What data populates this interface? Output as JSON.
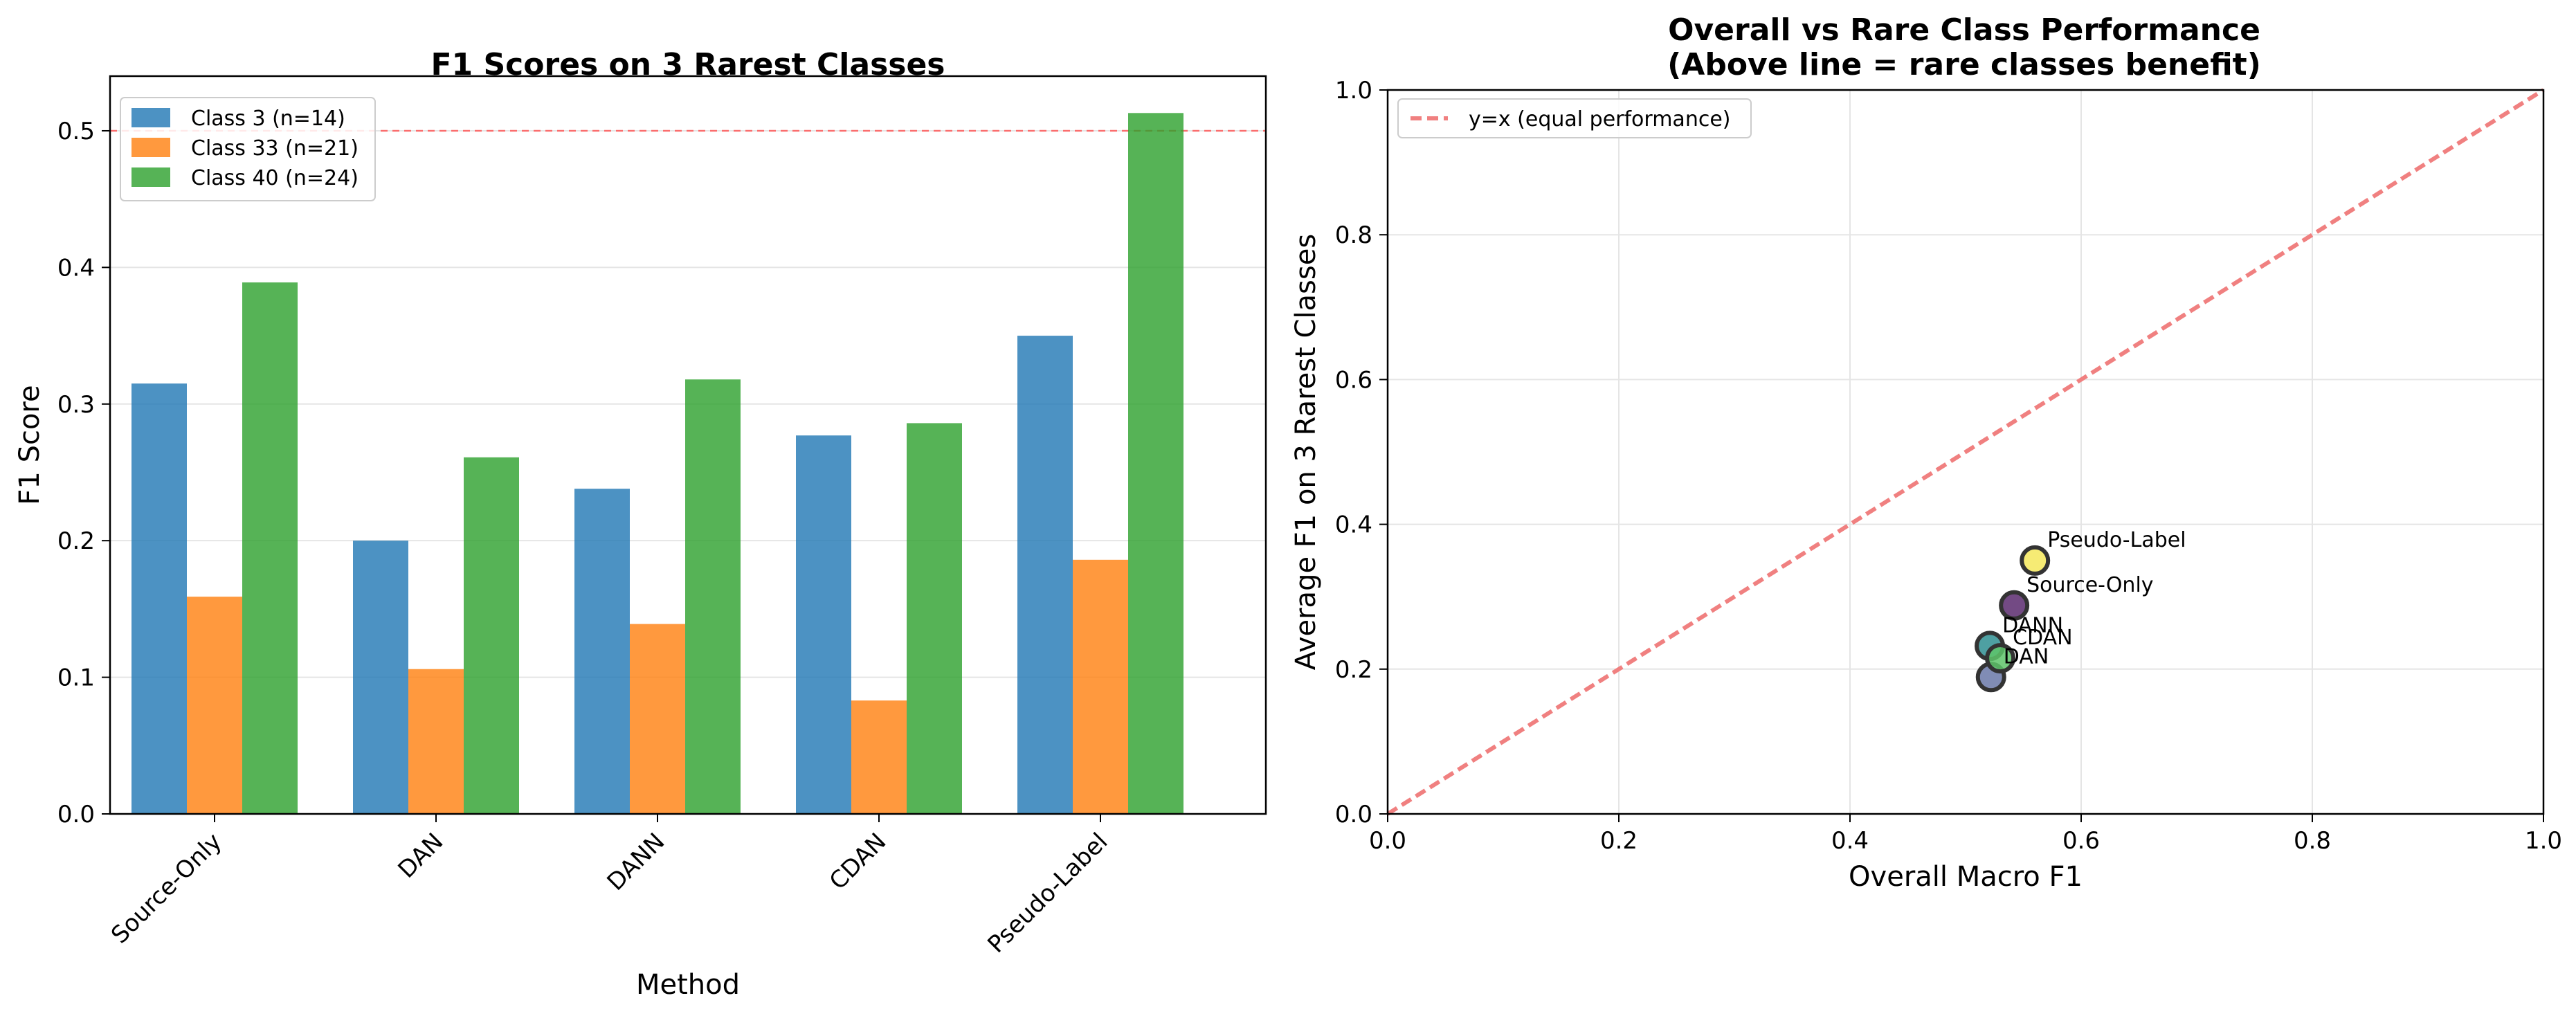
{
  "chart_data": [
    {
      "type": "bar",
      "title": "F1 Scores on 3 Rarest Classes",
      "xlabel": "Method",
      "ylabel": "F1 Score",
      "ylim": [
        0,
        0.54
      ],
      "yticks": [
        "0.0",
        "0.1",
        "0.2",
        "0.3",
        "0.4",
        "0.5"
      ],
      "ytick_values": [
        0,
        0.1,
        0.2,
        0.3,
        0.4,
        0.5
      ],
      "grid": "y",
      "legend_position": "top-left",
      "categories": [
        "Source-Only",
        "DAN",
        "DANN",
        "CDAN",
        "Pseudo-Label"
      ],
      "series": [
        {
          "name": "Class 3 (n=14)",
          "color": "#1f77b4",
          "values": [
            0.315,
            0.2,
            0.238,
            0.277,
            0.35
          ]
        },
        {
          "name": "Class 33 (n=21)",
          "color": "#ff7f0e",
          "values": [
            0.159,
            0.106,
            0.139,
            0.083,
            0.186
          ]
        },
        {
          "name": "Class 40 (n=24)",
          "color": "#2ca02c",
          "values": [
            0.389,
            0.261,
            0.318,
            0.286,
            0.513
          ]
        }
      ],
      "reference_line": {
        "y": 0.5,
        "color": "#ff5050",
        "style": "dashed"
      }
    },
    {
      "type": "scatter",
      "title": "Overall vs Rare Class Performance",
      "subtitle": "(Above line = rare classes benefit)",
      "xlabel": "Overall Macro F1",
      "ylabel": "Average F1 on 3 Rarest Classes",
      "xlim": [
        0,
        1
      ],
      "ylim": [
        0,
        1
      ],
      "xticks": [
        "0.0",
        "0.2",
        "0.4",
        "0.6",
        "0.8",
        "1.0"
      ],
      "yticks": [
        "0.0",
        "0.2",
        "0.4",
        "0.6",
        "0.8",
        "1.0"
      ],
      "tick_values": [
        0,
        0.2,
        0.4,
        0.6,
        0.8,
        1.0
      ],
      "grid": "both",
      "legend_position": "top-left",
      "legend": [
        "y=x (equal performance)"
      ],
      "reference_line_color": "#f08080",
      "points": [
        {
          "label": "Source-Only",
          "x": 0.542,
          "y": 0.288,
          "color": "#5b2a6e"
        },
        {
          "label": "DAN",
          "x": 0.522,
          "y": 0.189,
          "color": "#6a78a8"
        },
        {
          "label": "DANN",
          "x": 0.521,
          "y": 0.232,
          "color": "#2f8f92"
        },
        {
          "label": "CDAN",
          "x": 0.53,
          "y": 0.215,
          "color": "#5ec46a"
        },
        {
          "label": "Pseudo-Label",
          "x": 0.56,
          "y": 0.35,
          "color": "#f5e85c"
        }
      ]
    }
  ]
}
